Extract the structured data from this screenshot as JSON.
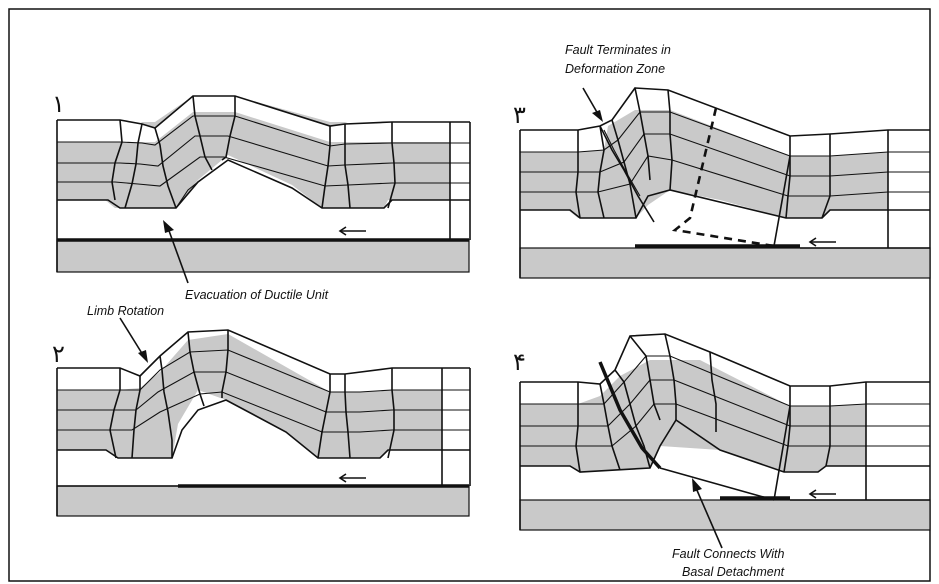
{
  "panels": [
    {
      "number": "١",
      "annotation": "Evacuation of Ductile Unit"
    },
    {
      "number": "٢",
      "annotation": "Limb Rotation"
    },
    {
      "number": "٣",
      "annotation_line1": "Fault Terminates in",
      "annotation_line2": "Deformation Zone"
    },
    {
      "number": "۴",
      "annotation_line1": "Fault Connects With",
      "annotation_line2": "Basal Detachment"
    }
  ]
}
